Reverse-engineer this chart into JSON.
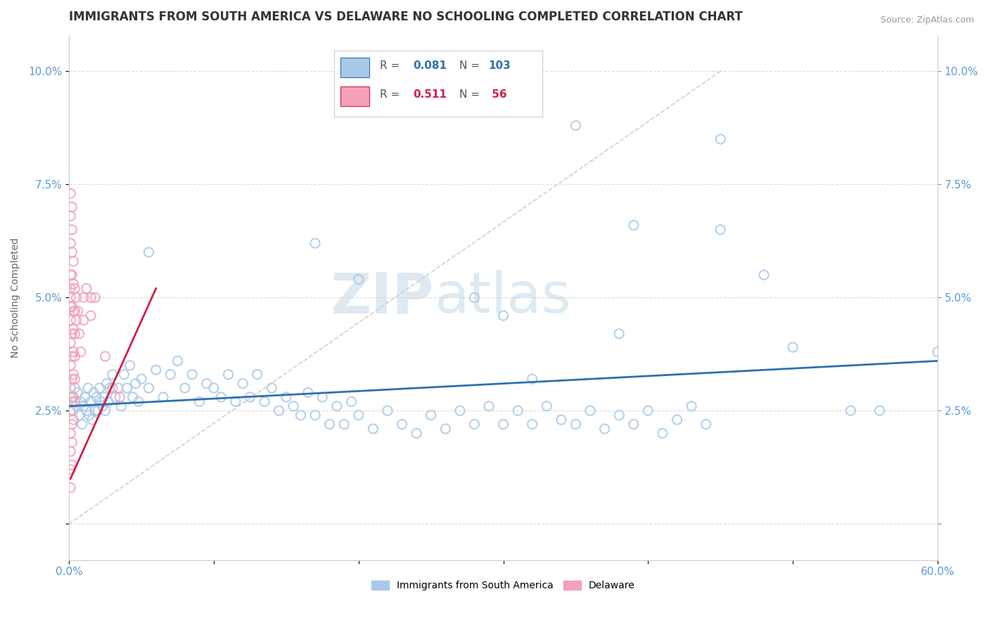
{
  "title": "IMMIGRANTS FROM SOUTH AMERICA VS DELAWARE NO SCHOOLING COMPLETED CORRELATION CHART",
  "source": "Source: ZipAtlas.com",
  "ylabel": "No Schooling Completed",
  "yticks": [
    0.0,
    0.025,
    0.05,
    0.075,
    0.1
  ],
  "ytick_labels": [
    "",
    "2.5%",
    "5.0%",
    "7.5%",
    "10.0%"
  ],
  "xmin": 0.0,
  "xmax": 0.6,
  "ymin": -0.008,
  "ymax": 0.108,
  "color_blue": "#a8c8e8",
  "color_pink": "#f4a0b8",
  "color_line_blue": "#3070b0",
  "color_line_pink": "#d0204a",
  "color_diag": "#c8c8c8",
  "watermark_zip": "ZIP",
  "watermark_atlas": "atlas",
  "axis_label_color": "#5b9bd5",
  "title_color": "#333333",
  "blue_scatter": [
    [
      0.002,
      0.028
    ],
    [
      0.003,
      0.025
    ],
    [
      0.004,
      0.03
    ],
    [
      0.005,
      0.026
    ],
    [
      0.006,
      0.029
    ],
    [
      0.007,
      0.024
    ],
    [
      0.008,
      0.027
    ],
    [
      0.009,
      0.022
    ],
    [
      0.01,
      0.026
    ],
    [
      0.011,
      0.028
    ],
    [
      0.012,
      0.025
    ],
    [
      0.013,
      0.03
    ],
    [
      0.014,
      0.024
    ],
    [
      0.015,
      0.027
    ],
    [
      0.016,
      0.023
    ],
    [
      0.017,
      0.029
    ],
    [
      0.018,
      0.025
    ],
    [
      0.019,
      0.028
    ],
    [
      0.02,
      0.025
    ],
    [
      0.021,
      0.03
    ],
    [
      0.022,
      0.027
    ],
    [
      0.023,
      0.026
    ],
    [
      0.024,
      0.028
    ],
    [
      0.025,
      0.025
    ],
    [
      0.026,
      0.031
    ],
    [
      0.027,
      0.027
    ],
    [
      0.028,
      0.03
    ],
    [
      0.03,
      0.033
    ],
    [
      0.032,
      0.028
    ],
    [
      0.034,
      0.03
    ],
    [
      0.036,
      0.026
    ],
    [
      0.038,
      0.033
    ],
    [
      0.04,
      0.03
    ],
    [
      0.042,
      0.035
    ],
    [
      0.044,
      0.028
    ],
    [
      0.046,
      0.031
    ],
    [
      0.048,
      0.027
    ],
    [
      0.05,
      0.032
    ],
    [
      0.055,
      0.03
    ],
    [
      0.06,
      0.034
    ],
    [
      0.065,
      0.028
    ],
    [
      0.07,
      0.033
    ],
    [
      0.075,
      0.036
    ],
    [
      0.08,
      0.03
    ],
    [
      0.085,
      0.033
    ],
    [
      0.09,
      0.027
    ],
    [
      0.095,
      0.031
    ],
    [
      0.1,
      0.03
    ],
    [
      0.105,
      0.028
    ],
    [
      0.11,
      0.033
    ],
    [
      0.115,
      0.027
    ],
    [
      0.12,
      0.031
    ],
    [
      0.125,
      0.028
    ],
    [
      0.13,
      0.033
    ],
    [
      0.135,
      0.027
    ],
    [
      0.14,
      0.03
    ],
    [
      0.145,
      0.025
    ],
    [
      0.15,
      0.028
    ],
    [
      0.155,
      0.026
    ],
    [
      0.16,
      0.024
    ],
    [
      0.165,
      0.029
    ],
    [
      0.17,
      0.024
    ],
    [
      0.175,
      0.028
    ],
    [
      0.18,
      0.022
    ],
    [
      0.185,
      0.026
    ],
    [
      0.19,
      0.022
    ],
    [
      0.195,
      0.027
    ],
    [
      0.2,
      0.024
    ],
    [
      0.21,
      0.021
    ],
    [
      0.22,
      0.025
    ],
    [
      0.23,
      0.022
    ],
    [
      0.24,
      0.02
    ],
    [
      0.25,
      0.024
    ],
    [
      0.26,
      0.021
    ],
    [
      0.27,
      0.025
    ],
    [
      0.28,
      0.022
    ],
    [
      0.29,
      0.026
    ],
    [
      0.3,
      0.022
    ],
    [
      0.31,
      0.025
    ],
    [
      0.32,
      0.022
    ],
    [
      0.33,
      0.026
    ],
    [
      0.34,
      0.023
    ],
    [
      0.35,
      0.022
    ],
    [
      0.36,
      0.025
    ],
    [
      0.37,
      0.021
    ],
    [
      0.38,
      0.024
    ],
    [
      0.39,
      0.022
    ],
    [
      0.4,
      0.025
    ],
    [
      0.41,
      0.02
    ],
    [
      0.42,
      0.023
    ],
    [
      0.43,
      0.026
    ],
    [
      0.44,
      0.022
    ],
    [
      0.055,
      0.06
    ],
    [
      0.17,
      0.062
    ],
    [
      0.2,
      0.054
    ],
    [
      0.28,
      0.05
    ],
    [
      0.3,
      0.046
    ],
    [
      0.32,
      0.032
    ],
    [
      0.35,
      0.088
    ],
    [
      0.38,
      0.042
    ],
    [
      0.39,
      0.066
    ],
    [
      0.45,
      0.065
    ],
    [
      0.5,
      0.039
    ],
    [
      0.54,
      0.025
    ],
    [
      0.56,
      0.025
    ],
    [
      0.45,
      0.085
    ],
    [
      0.48,
      0.055
    ],
    [
      0.6,
      0.038
    ]
  ],
  "pink_scatter": [
    [
      0.001,
      0.05
    ],
    [
      0.001,
      0.055
    ],
    [
      0.001,
      0.048
    ],
    [
      0.001,
      0.062
    ],
    [
      0.001,
      0.068
    ],
    [
      0.001,
      0.073
    ],
    [
      0.001,
      0.052
    ],
    [
      0.001,
      0.045
    ],
    [
      0.001,
      0.04
    ],
    [
      0.001,
      0.035
    ],
    [
      0.001,
      0.03
    ],
    [
      0.001,
      0.025
    ],
    [
      0.001,
      0.02
    ],
    [
      0.001,
      0.016
    ],
    [
      0.001,
      0.012
    ],
    [
      0.001,
      0.008
    ],
    [
      0.002,
      0.048
    ],
    [
      0.002,
      0.06
    ],
    [
      0.002,
      0.065
    ],
    [
      0.002,
      0.07
    ],
    [
      0.002,
      0.055
    ],
    [
      0.002,
      0.042
    ],
    [
      0.002,
      0.037
    ],
    [
      0.002,
      0.032
    ],
    [
      0.002,
      0.027
    ],
    [
      0.002,
      0.022
    ],
    [
      0.002,
      0.018
    ],
    [
      0.002,
      0.013
    ],
    [
      0.003,
      0.058
    ],
    [
      0.003,
      0.053
    ],
    [
      0.003,
      0.047
    ],
    [
      0.003,
      0.043
    ],
    [
      0.003,
      0.038
    ],
    [
      0.003,
      0.033
    ],
    [
      0.003,
      0.028
    ],
    [
      0.003,
      0.023
    ],
    [
      0.004,
      0.052
    ],
    [
      0.004,
      0.047
    ],
    [
      0.004,
      0.042
    ],
    [
      0.004,
      0.037
    ],
    [
      0.004,
      0.032
    ],
    [
      0.004,
      0.027
    ],
    [
      0.005,
      0.05
    ],
    [
      0.005,
      0.045
    ],
    [
      0.006,
      0.047
    ],
    [
      0.007,
      0.042
    ],
    [
      0.008,
      0.038
    ],
    [
      0.01,
      0.05
    ],
    [
      0.01,
      0.045
    ],
    [
      0.012,
      0.052
    ],
    [
      0.015,
      0.05
    ],
    [
      0.015,
      0.046
    ],
    [
      0.018,
      0.05
    ],
    [
      0.025,
      0.037
    ],
    [
      0.03,
      0.03
    ],
    [
      0.035,
      0.028
    ]
  ],
  "blue_line_x": [
    0.0,
    0.6
  ],
  "blue_line_y": [
    0.026,
    0.036
  ],
  "pink_line_x": [
    0.001,
    0.06
  ],
  "pink_line_y": [
    0.01,
    0.052
  ]
}
